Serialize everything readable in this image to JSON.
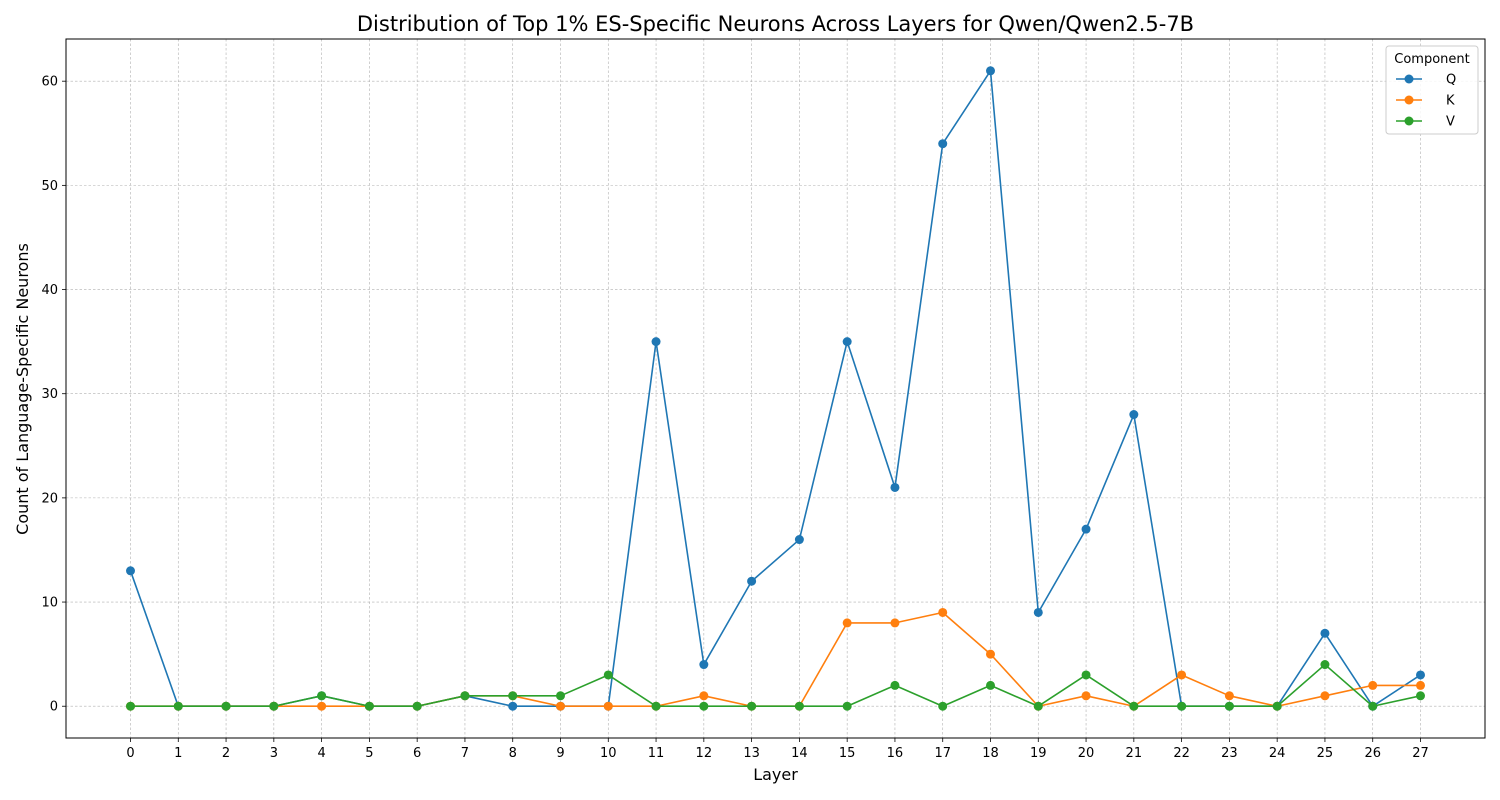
{
  "chart_data": {
    "type": "line",
    "title": "Distribution of Top 1% ES-Specific Neurons Across Layers for Qwen/Qwen2.5-7B",
    "xlabel": "Layer",
    "ylabel": "Count of Language-Specific Neurons",
    "x": [
      0,
      1,
      2,
      3,
      4,
      5,
      6,
      7,
      8,
      9,
      10,
      11,
      12,
      13,
      14,
      15,
      16,
      17,
      18,
      19,
      20,
      21,
      22,
      23,
      24,
      25,
      26,
      27
    ],
    "x_tick_labels": [
      "0",
      "1",
      "2",
      "3",
      "4",
      "5",
      "6",
      "7",
      "8",
      "9",
      "10",
      "11",
      "12",
      "13",
      "14",
      "15",
      "16",
      "17",
      "18",
      "19",
      "20",
      "21",
      "22",
      "23",
      "24",
      "25",
      "26",
      "27"
    ],
    "y_ticks": [
      0,
      10,
      20,
      30,
      40,
      50,
      60
    ],
    "y_tick_labels": [
      "0",
      "10",
      "20",
      "30",
      "40",
      "50",
      "60"
    ],
    "xlim": [
      -1.35,
      28.35
    ],
    "ylim": [
      -3.05,
      64.05
    ],
    "grid": true,
    "legend": {
      "title": "Component",
      "position": "top-right"
    },
    "series": [
      {
        "name": "Q",
        "color": "#1f77b4",
        "values": [
          13,
          0,
          0,
          0,
          1,
          0,
          0,
          1,
          0,
          0,
          0,
          35,
          4,
          12,
          16,
          35,
          21,
          54,
          61,
          9,
          17,
          28,
          0,
          0,
          0,
          7,
          0,
          3
        ]
      },
      {
        "name": "K",
        "color": "#ff7f0e",
        "values": [
          0,
          0,
          0,
          0,
          0,
          0,
          0,
          1,
          1,
          0,
          0,
          0,
          1,
          0,
          0,
          8,
          8,
          9,
          5,
          0,
          1,
          0,
          3,
          1,
          0,
          1,
          2,
          2
        ]
      },
      {
        "name": "V",
        "color": "#2ca02c",
        "values": [
          0,
          0,
          0,
          0,
          1,
          0,
          0,
          1,
          1,
          1,
          3,
          0,
          0,
          0,
          0,
          0,
          2,
          0,
          2,
          0,
          3,
          0,
          0,
          0,
          0,
          4,
          0,
          1
        ]
      }
    ]
  }
}
